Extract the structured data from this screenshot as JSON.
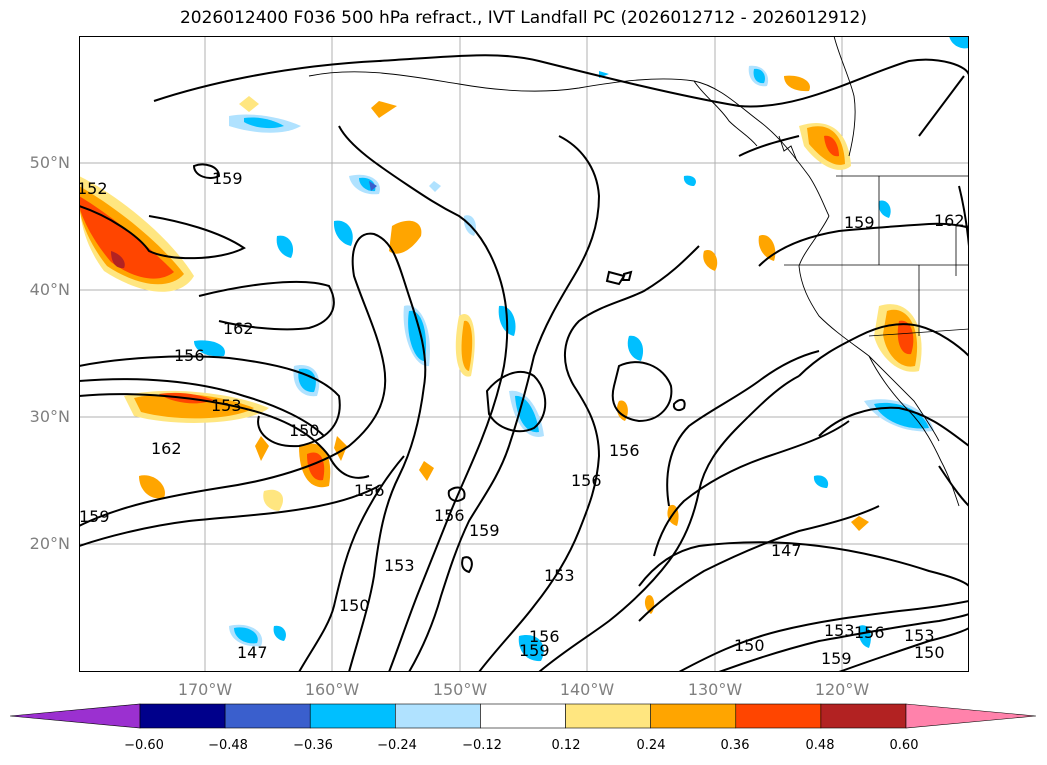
{
  "title": "2026012400 F036 500 hPa refract., IVT Landfall PC (2026012712 - 2026012912)",
  "map": {
    "lat_labels": [
      "50°N",
      "40°N",
      "30°N",
      "20°N"
    ],
    "lon_labels": [
      "170°W",
      "160°W",
      "150°W",
      "140°W",
      "130°W",
      "120°W"
    ],
    "contour_labels": [
      "159",
      "162",
      "156",
      "153",
      "150",
      "162",
      "159",
      "152",
      "156",
      "150",
      "153",
      "156",
      "159",
      "147",
      "153",
      "156",
      "159",
      "147",
      "150",
      "153",
      "156",
      "159",
      "150",
      "153",
      "162",
      "159",
      "156",
      "156"
    ]
  },
  "colorbar": {
    "ticks": [
      "−0.60",
      "−0.48",
      "−0.36",
      "−0.24",
      "−0.12",
      "0.12",
      "0.24",
      "0.36",
      "0.48",
      "0.60"
    ],
    "colors": [
      "#9b30d0",
      "#00008b",
      "#3a5fcd",
      "#00bfff",
      "#b0e2ff",
      "#ffffff",
      "#ffe680",
      "#ffa500",
      "#ff4500",
      "#b22222",
      "#ff82ab"
    ]
  }
}
